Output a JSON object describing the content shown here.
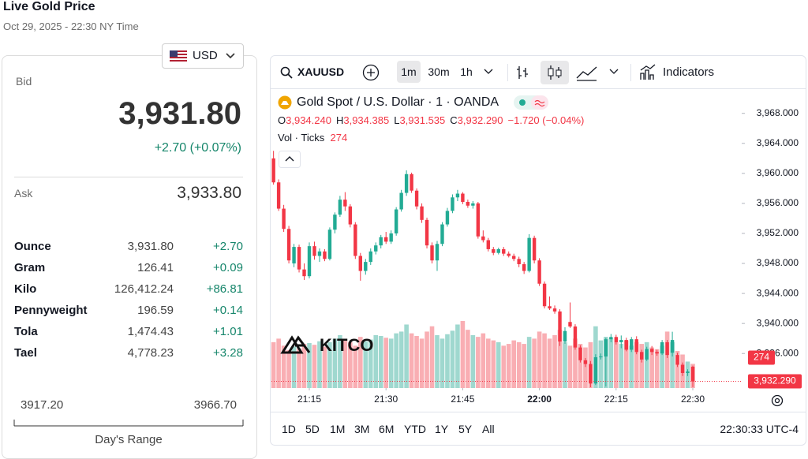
{
  "header": {
    "title": "Live Gold Price",
    "subtitle": "Oct 29, 2025 - 22:30 NY Time",
    "currency": "USD"
  },
  "quote": {
    "bid_label": "Bid",
    "bid": "3,931.80",
    "change": "+2.70 (+0.07%)",
    "ask_label": "Ask",
    "ask": "3,933.80"
  },
  "metals": {
    "rows": [
      [
        "Ounce",
        "3,931.80",
        "+2.70"
      ],
      [
        "Gram",
        "126.41",
        "+0.09"
      ],
      [
        "Kilo",
        "126,412.24",
        "+86.81"
      ],
      [
        "Pennyweight",
        "196.59",
        "+0.14"
      ],
      [
        "Tola",
        "1,474.43",
        "+1.01"
      ],
      [
        "Tael",
        "4,778.23",
        "+3.28"
      ]
    ]
  },
  "range": {
    "low": "3917.20",
    "high": "3966.70",
    "label": "Day's Range"
  },
  "toolbar": {
    "symbol": "XAUUSD",
    "intervals": [
      "1m",
      "30m",
      "1h"
    ],
    "indicators": "Indicators"
  },
  "footer": {
    "ranges": [
      "1D",
      "5D",
      "1M",
      "3M",
      "6M",
      "YTD",
      "1Y",
      "5Y",
      "All"
    ],
    "clock": "22:30:33 UTC-4"
  },
  "logo": "KITCO",
  "chart_data": {
    "type": "candlestick",
    "title": "Gold Spot / U.S. Dollar · 1 · OANDA",
    "ohlc_header": [
      {
        "key": "O",
        "value": "3,934.240"
      },
      {
        "key": "H",
        "value": "3,934.385"
      },
      {
        "key": "L",
        "value": "3,931.535"
      },
      {
        "key": "C",
        "value": "3,932.290"
      }
    ],
    "ohlc_change": "−1.720 (−0.04%)",
    "volume_label": "Vol · Ticks",
    "last_price_label": "3,932.290",
    "up_color": "#22ab94",
    "down_color": "#f23645",
    "volume_up_color": "#9fd8cf",
    "volume_down_color": "#f9aeb3",
    "ylim": [
      3931.4,
      3970.7
    ],
    "yticks": [
      {
        "value": 3936,
        "label": "3,936.000"
      },
      {
        "value": 3940,
        "label": "3,940.000"
      },
      {
        "value": 3944,
        "label": "3,944.000"
      },
      {
        "value": 3948,
        "label": "3,948.000"
      },
      {
        "value": 3952,
        "label": "3,952.000"
      },
      {
        "value": 3956,
        "label": "3,956.000"
      },
      {
        "value": 3960,
        "label": "3,960.000"
      },
      {
        "value": 3964,
        "label": "3,964.000"
      },
      {
        "value": 3968,
        "label": "3,968.000"
      }
    ],
    "xticks": [
      "21:15",
      "21:30",
      "21:45",
      "22:00",
      "22:15",
      "22:30"
    ],
    "x": [
      "21:08",
      "21:09",
      "21:10",
      "21:11",
      "21:12",
      "21:13",
      "21:14",
      "21:15",
      "21:16",
      "21:17",
      "21:18",
      "21:19",
      "21:20",
      "21:21",
      "21:22",
      "21:23",
      "21:24",
      "21:25",
      "21:26",
      "21:27",
      "21:28",
      "21:29",
      "21:30",
      "21:31",
      "21:32",
      "21:33",
      "21:34",
      "21:35",
      "21:36",
      "21:37",
      "21:38",
      "21:39",
      "21:40",
      "21:41",
      "21:42",
      "21:43",
      "21:44",
      "21:45",
      "21:46",
      "21:47",
      "21:48",
      "21:49",
      "21:50",
      "21:51",
      "21:52",
      "21:53",
      "21:54",
      "21:55",
      "21:56",
      "21:57",
      "21:58",
      "21:59",
      "22:00",
      "22:01",
      "22:02",
      "22:03",
      "22:04",
      "22:05",
      "22:06",
      "22:07",
      "22:08",
      "22:09",
      "22:10",
      "22:11",
      "22:12",
      "22:13",
      "22:14",
      "22:15",
      "22:16",
      "22:17",
      "22:18",
      "22:19",
      "22:20",
      "22:21",
      "22:22",
      "22:23",
      "22:24",
      "22:25",
      "22:26",
      "22:27",
      "22:28",
      "22:29",
      "22:30"
    ],
    "open": [
      3962.0,
      3958.8,
      3955.3,
      3952.6,
      3948.0,
      3950.2,
      3947.2,
      3946.3,
      3950.3,
      3949.0,
      3949.6,
      3948.6,
      3952.5,
      3954.5,
      3956.5,
      3955.6,
      3953.2,
      3949.0,
      3947.0,
      3948.2,
      3949.6,
      3950.4,
      3951.5,
      3950.9,
      3952.0,
      3955.2,
      3957.4,
      3959.9,
      3957.7,
      3955.6,
      3953.8,
      3950.4,
      3948.4,
      3950.6,
      3953.2,
      3955.0,
      3956.8,
      3957.3,
      3956.2,
      3955.7,
      3956.0,
      3951.6,
      3951.1,
      3949.9,
      3949.4,
      3949.9,
      3949.3,
      3949.0,
      3948.6,
      3947.9,
      3947.0,
      3951.4,
      3948.4,
      3945.3,
      3942.3,
      3942.0,
      3941.6,
      3937.6,
      3940.2,
      3939.6,
      3936.8,
      3935.1,
      3934.6,
      3932.0,
      3935.5,
      3935.6,
      3937.9,
      3938.2,
      3937.5,
      3937.8,
      3936.5,
      3937.9,
      3936.2,
      3935.2,
      3936.6,
      3936.2,
      3936.0,
      3937.5,
      3936.1,
      3935.8,
      3934.5,
      3933.4,
      3934.24
    ],
    "high": [
      3963.0,
      3959.2,
      3955.8,
      3953.0,
      3950.6,
      3950.5,
      3948.0,
      3950.8,
      3950.9,
      3950.0,
      3949.9,
      3952.8,
      3954.8,
      3957.0,
      3957.5,
      3955.9,
      3953.5,
      3949.4,
      3948.6,
      3950.0,
      3950.8,
      3951.8,
      3952.2,
      3952.4,
      3955.5,
      3957.8,
      3960.4,
      3960.1,
      3958.0,
      3956.0,
      3954.1,
      3950.8,
      3951.0,
      3953.5,
      3955.4,
      3957.2,
      3957.8,
      3957.5,
      3956.5,
      3956.3,
      3956.2,
      3952.4,
      3951.4,
      3950.2,
      3950.1,
      3950.2,
      3949.6,
      3949.3,
      3948.9,
      3948.2,
      3951.9,
      3951.7,
      3948.7,
      3945.6,
      3943.6,
      3942.4,
      3941.9,
      3939.5,
      3942.8,
      3939.9,
      3937.1,
      3935.4,
      3935.0,
      3935.9,
      3936.0,
      3938.1,
      3938.6,
      3938.5,
      3938.4,
      3938.1,
      3938.2,
      3938.3,
      3936.5,
      3936.9,
      3937.0,
      3936.5,
      3937.8,
      3937.8,
      3938.9,
      3936.1,
      3934.8,
      3933.9,
      3934.385
    ],
    "low": [
      3958.5,
      3955.0,
      3952.2,
      3948.0,
      3947.5,
      3946.8,
      3945.8,
      3946.0,
      3948.5,
      3948.2,
      3948.3,
      3948.4,
      3952.0,
      3954.2,
      3955.0,
      3952.8,
      3948.6,
      3945.7,
      3946.5,
      3947.8,
      3949.2,
      3950.0,
      3950.6,
      3950.6,
      3951.7,
      3954.9,
      3957.0,
      3957.4,
      3955.2,
      3953.4,
      3950.0,
      3948.0,
      3947.0,
      3950.3,
      3952.9,
      3954.7,
      3956.3,
      3955.9,
      3955.4,
      3955.3,
      3951.3,
      3950.8,
      3949.6,
      3949.1,
      3949.2,
      3949.0,
      3948.8,
      3948.3,
      3947.5,
      3946.6,
      3946.8,
      3948.0,
      3945.0,
      3942.0,
      3941.8,
      3941.3,
      3937.0,
      3937.3,
      3939.4,
      3936.5,
      3934.8,
      3934.2,
      3931.5,
      3931.8,
      3935.2,
      3931.6,
      3937.5,
      3937.2,
      3936.7,
      3936.3,
      3936.2,
      3935.9,
      3934.8,
      3935.0,
      3935.8,
      3935.7,
      3935.8,
      3935.4,
      3935.6,
      3934.2,
      3933.0,
      3933.0,
      3931.535
    ],
    "close": [
      3958.8,
      3955.3,
      3952.6,
      3948.4,
      3950.2,
      3947.2,
      3946.3,
      3950.3,
      3949.0,
      3949.6,
      3948.6,
      3952.5,
      3954.5,
      3956.5,
      3955.6,
      3953.2,
      3949.0,
      3947.0,
      3948.2,
      3949.6,
      3950.4,
      3951.5,
      3950.9,
      3952.0,
      3955.2,
      3957.4,
      3959.9,
      3957.7,
      3955.6,
      3953.8,
      3950.4,
      3948.4,
      3950.6,
      3953.2,
      3955.0,
      3956.8,
      3957.3,
      3956.2,
      3955.7,
      3956.0,
      3951.6,
      3951.1,
      3949.9,
      3949.4,
      3949.9,
      3949.3,
      3949.0,
      3948.6,
      3947.9,
      3947.0,
      3951.4,
      3948.4,
      3945.3,
      3942.3,
      3942.0,
      3941.6,
      3937.6,
      3939.0,
      3939.6,
      3936.8,
      3935.1,
      3934.6,
      3932.0,
      3935.5,
      3935.6,
      3937.9,
      3938.2,
      3937.5,
      3937.8,
      3936.5,
      3937.9,
      3936.2,
      3935.2,
      3936.6,
      3936.2,
      3936.0,
      3937.5,
      3935.8,
      3937.8,
      3934.5,
      3933.4,
      3933.6,
      3932.29
    ],
    "volume": [
      520,
      560,
      480,
      430,
      470,
      450,
      500,
      510,
      490,
      530,
      470,
      520,
      560,
      600,
      540,
      520,
      480,
      580,
      530,
      550,
      600,
      590,
      570,
      560,
      620,
      640,
      720,
      620,
      590,
      560,
      640,
      700,
      600,
      560,
      610,
      650,
      720,
      760,
      660,
      600,
      580,
      620,
      560,
      540,
      520,
      480,
      500,
      540,
      520,
      500,
      580,
      560,
      640,
      620,
      560,
      600,
      660,
      520,
      480,
      560,
      500,
      460,
      520,
      700,
      540,
      580,
      560,
      520,
      500,
      540,
      480,
      520,
      500,
      520,
      460,
      440,
      480,
      640,
      520,
      420,
      380,
      300,
      274
    ]
  }
}
